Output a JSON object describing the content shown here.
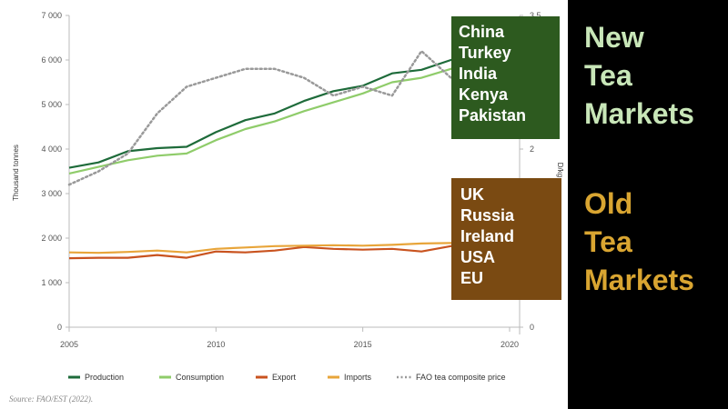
{
  "chart_data": {
    "type": "line",
    "x": [
      2005,
      2006,
      2007,
      2008,
      2009,
      2010,
      2011,
      2012,
      2013,
      2014,
      2015,
      2016,
      2017,
      2018,
      2019,
      2020
    ],
    "xlim": [
      2005,
      2020
    ],
    "x_ticks": [
      "2005",
      "2010",
      "2015",
      "2020"
    ],
    "ylabel": "Thousand tonnes",
    "ylim": [
      0,
      7000
    ],
    "y_ticks": [
      "0",
      "1 000",
      "2 000",
      "3 000",
      "4 000",
      "5 000",
      "6 000",
      "7 000"
    ],
    "y2label": "USD/kg",
    "y2label_visible": "D/kg",
    "y2lim": [
      0,
      3.5
    ],
    "y2_ticks": [
      "0",
      "2",
      "3.5"
    ],
    "grid": false,
    "legend_position": "bottom",
    "series": [
      {
        "name": "Production",
        "color": "#1e6b3a",
        "axis": "left",
        "values": [
          3580,
          3700,
          3950,
          4020,
          4050,
          4380,
          4650,
          4800,
          5080,
          5300,
          5420,
          5700,
          5780,
          6000,
          6200,
          null
        ]
      },
      {
        "name": "Consumption",
        "color": "#8fcc6a",
        "axis": "left",
        "values": [
          3450,
          3600,
          3750,
          3850,
          3900,
          4200,
          4450,
          4620,
          4850,
          5050,
          5250,
          5500,
          5600,
          5800,
          6000,
          null
        ]
      },
      {
        "name": "Export",
        "color": "#c9531f",
        "axis": "left",
        "values": [
          1550,
          1560,
          1560,
          1620,
          1560,
          1700,
          1680,
          1720,
          1800,
          1760,
          1740,
          1760,
          1700,
          1820,
          1840,
          null
        ]
      },
      {
        "name": "Imports",
        "color": "#e8a53a",
        "axis": "left",
        "values": [
          1680,
          1670,
          1690,
          1720,
          1680,
          1760,
          1790,
          1820,
          1830,
          1840,
          1830,
          1850,
          1880,
          1890,
          1900,
          null
        ]
      },
      {
        "name": "FAO tea composite price",
        "color": "#999999",
        "axis": "right",
        "dotted": true,
        "values": [
          1.6,
          1.75,
          1.95,
          2.4,
          2.7,
          2.8,
          2.9,
          2.9,
          2.8,
          2.6,
          2.7,
          2.6,
          3.1,
          2.8,
          2.5,
          null
        ]
      }
    ],
    "source": "Source: FAO/EST (2022)."
  },
  "new_markets_countries": [
    "China",
    "Turkey",
    "India",
    "Kenya",
    "Pakistan"
  ],
  "old_markets_countries": [
    "UK",
    "Russia",
    "Ireland",
    "USA",
    "EU"
  ],
  "new_markets_label": [
    "New",
    "Tea",
    "Markets"
  ],
  "old_markets_label": [
    "Old",
    "Tea",
    "Markets"
  ],
  "colors": {
    "new_box": "#2d5a1f",
    "old_box": "#7a4a12",
    "new_label": "#c8e6b8",
    "old_label": "#d9a531",
    "side_panel": "#000000"
  }
}
